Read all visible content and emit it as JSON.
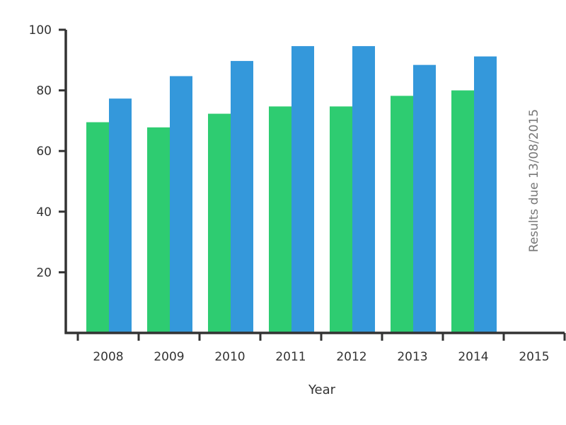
{
  "chart_data": {
    "type": "bar",
    "categories": [
      "2008",
      "2009",
      "2010",
      "2011",
      "2012",
      "2013",
      "2014",
      "2015"
    ],
    "series": [
      {
        "values": [
          69.5,
          67.8,
          72.3,
          74.7,
          74.7,
          78.2,
          80,
          null
        ]
      },
      {
        "values": [
          77.3,
          84.7,
          89.7,
          94.6,
          94.6,
          88.4,
          91.2,
          null
        ]
      }
    ],
    "xlabel": "Year",
    "ylabel": "",
    "ylim": [
      0,
      100
    ],
    "yticks": [
      "20",
      "40",
      "60",
      "80",
      "100"
    ],
    "annotation": "Results due 13/08/2015",
    "colors": {
      "series_1": "#2ecc71",
      "series_2": "#3498db",
      "axis": "#333333"
    },
    "grid": false
  }
}
